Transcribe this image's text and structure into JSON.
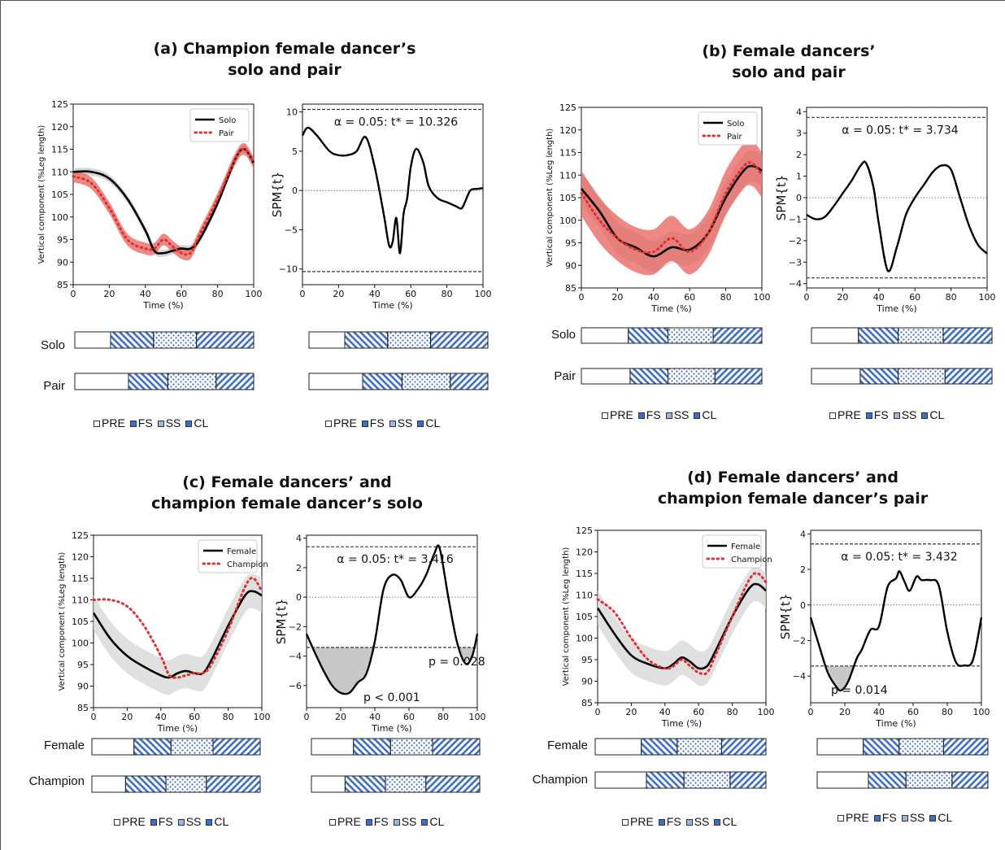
{
  "panels": [
    {
      "id": "a",
      "title": "(a) Champion female dancer’s\nsolo and pair",
      "phase_labels": [
        "Solo",
        "Pair"
      ],
      "phase_legend": [
        "PRE",
        "FS",
        "SS",
        "CL"
      ],
      "chart_data": [
        {
          "type": "line",
          "xlabel": "Time (%)",
          "ylabel": "Vertical component (%Leg length)",
          "xlim": [
            0,
            100
          ],
          "ylim": [
            85,
            125
          ],
          "xticks": [
            0,
            20,
            40,
            60,
            80,
            100
          ],
          "yticks": [
            85,
            90,
            95,
            100,
            105,
            110,
            115,
            120,
            125
          ],
          "legend_position": "top-right",
          "series": [
            {
              "name": "Solo",
              "style": "solid",
              "color": "#000000",
              "x": [
                0,
                10,
                20,
                30,
                40,
                45,
                50,
                55,
                60,
                65,
                70,
                80,
                90,
                95,
                100
              ],
              "y": [
                110,
                110,
                108.5,
                104,
                97,
                92.5,
                92,
                92.5,
                93,
                93,
                95,
                103,
                113,
                115,
                112
              ],
              "band": {
                "color": "#c8c8c8",
                "half_width": 0.8
              }
            },
            {
              "name": "Pair",
              "style": "dotted",
              "color": "#e03030",
              "x": [
                0,
                10,
                20,
                30,
                40,
                45,
                50,
                55,
                60,
                65,
                70,
                80,
                90,
                95,
                100
              ],
              "y": [
                109,
                107.5,
                102,
                95,
                93,
                93,
                95,
                93.5,
                92,
                92,
                96,
                104,
                113,
                115,
                112
              ],
              "band": {
                "color": "#e8605c",
                "half_width": 1.3
              }
            }
          ]
        },
        {
          "type": "line",
          "xlabel": "Time (%)",
          "ylabel": "SPM{t}",
          "xlim": [
            0,
            100
          ],
          "ylim": [
            -12,
            11
          ],
          "xticks": [
            0,
            20,
            40,
            60,
            80,
            100
          ],
          "yticks": [
            -10,
            -5,
            0,
            5,
            10
          ],
          "threshold": 10.326,
          "annotation": "α = 0.05:  t* = 10.326",
          "series": [
            {
              "name": "SPM{t}",
              "x": [
                0,
                3,
                8,
                15,
                20,
                25,
                30,
                35,
                40,
                45,
                48,
                50,
                52,
                54,
                56,
                58,
                60,
                63,
                67,
                70,
                75,
                80,
                85,
                88,
                90,
                93,
                97,
                100
              ],
              "y": [
                7,
                8,
                7,
                5,
                4.5,
                4.5,
                5,
                6.8,
                3,
                -3,
                -7,
                -6.5,
                -3.5,
                -8,
                -3,
                -1,
                3,
                5.3,
                3.5,
                0.5,
                -1,
                -1.5,
                -2,
                -2.3,
                -1.5,
                0,
                0.2,
                0.3
              ]
            }
          ]
        }
      ],
      "phase_bars": [
        [
          {
            "PRE": 20,
            "FS": 24,
            "SS": 24,
            "CL": 32
          },
          {
            "PRE": 20,
            "FS": 24,
            "SS": 24,
            "CL": 32
          }
        ],
        [
          {
            "PRE": 30,
            "FS": 22,
            "SS": 27,
            "CL": 21
          },
          {
            "PRE": 30,
            "FS": 22,
            "SS": 27,
            "CL": 21
          }
        ]
      ]
    },
    {
      "id": "b",
      "title": "(b) Female dancers’\nsolo and pair",
      "phase_labels": [
        "Solo",
        "Pair"
      ],
      "phase_legend": [
        "PRE",
        "FS",
        "SS",
        "CL"
      ],
      "chart_data": [
        {
          "type": "line",
          "xlabel": "Time (%)",
          "ylabel": "Vertical component (%Leg length)",
          "xlim": [
            0,
            100
          ],
          "ylim": [
            85,
            125
          ],
          "xticks": [
            0,
            20,
            40,
            60,
            80,
            100
          ],
          "yticks": [
            85,
            90,
            95,
            100,
            105,
            110,
            115,
            120,
            125
          ],
          "legend_position": "top-right",
          "series": [
            {
              "name": "Solo",
              "style": "solid",
              "color": "#000000",
              "x": [
                0,
                10,
                20,
                30,
                40,
                50,
                60,
                70,
                80,
                90,
                95,
                100
              ],
              "y": [
                107,
                102,
                96,
                94,
                92,
                94,
                93.5,
                97,
                105,
                111,
                112,
                111
              ],
              "band": {
                "color": "#cfcfcf",
                "half_width": 3.5
              }
            },
            {
              "name": "Pair",
              "style": "dotted",
              "color": "#e03030",
              "x": [
                0,
                10,
                20,
                30,
                40,
                50,
                60,
                70,
                80,
                90,
                95,
                100
              ],
              "y": [
                106,
                100,
                96,
                93.5,
                93,
                96,
                93,
                97,
                106,
                112,
                112.5,
                110
              ],
              "band": {
                "color": "#e8605c",
                "half_width": 5
              }
            }
          ]
        },
        {
          "type": "line",
          "xlabel": "Time (%)",
          "ylabel": "SPM{t}",
          "xlim": [
            0,
            100
          ],
          "ylim": [
            -4.2,
            4.2
          ],
          "xticks": [
            0,
            20,
            40,
            60,
            80,
            100
          ],
          "yticks": [
            -4,
            -3,
            -2,
            -1,
            0,
            1,
            2,
            3,
            4
          ],
          "threshold": 3.734,
          "annotation": "α = 0.05:  t* = 3.734",
          "series": [
            {
              "name": "SPM{t}",
              "x": [
                0,
                5,
                10,
                15,
                20,
                25,
                30,
                33,
                37,
                40,
                45,
                50,
                55,
                60,
                65,
                70,
                75,
                80,
                85,
                90,
                95,
                100
              ],
              "y": [
                -0.8,
                -1,
                -0.9,
                -0.4,
                0.2,
                0.8,
                1.5,
                1.6,
                0.5,
                -1.2,
                -3.4,
                -2.3,
                -0.8,
                0,
                0.6,
                1.2,
                1.5,
                1.3,
                0,
                -1.3,
                -2.2,
                -2.6
              ]
            }
          ]
        }
      ],
      "phase_bars": [
        [
          {
            "PRE": 26,
            "FS": 22,
            "SS": 25,
            "CL": 27
          },
          {
            "PRE": 26,
            "FS": 22,
            "SS": 25,
            "CL": 27
          }
        ],
        [
          {
            "PRE": 27,
            "FS": 21,
            "SS": 26,
            "CL": 26
          },
          {
            "PRE": 27,
            "FS": 21,
            "SS": 26,
            "CL": 26
          }
        ]
      ]
    },
    {
      "id": "c",
      "title": "(c) Female dancers’ and\nchampion female dancer’s solo",
      "phase_labels": [
        "Female",
        "Champion"
      ],
      "phase_legend": [
        "PRE",
        "FS",
        "SS",
        "CL"
      ],
      "chart_data": [
        {
          "type": "line",
          "xlabel": "Time (%)",
          "ylabel": "Vertical component (%Leg length)",
          "xlim": [
            0,
            100
          ],
          "ylim": [
            85,
            125
          ],
          "xticks": [
            0,
            20,
            40,
            60,
            80,
            100
          ],
          "yticks": [
            85,
            90,
            95,
            100,
            105,
            110,
            115,
            120,
            125
          ],
          "legend_position": "top-right",
          "series": [
            {
              "name": "Female",
              "style": "solid",
              "color": "#000000",
              "x": [
                0,
                10,
                20,
                30,
                40,
                45,
                50,
                55,
                60,
                65,
                70,
                80,
                90,
                95,
                100
              ],
              "y": [
                107,
                101,
                97,
                94.5,
                92.5,
                92,
                93,
                93.5,
                93,
                93,
                96,
                104,
                111,
                112,
                111
              ],
              "band": {
                "color": "#d6d6d6",
                "half_width": 4
              }
            },
            {
              "name": "Champion",
              "style": "dotted",
              "color": "#e03030",
              "x": [
                0,
                10,
                20,
                30,
                40,
                45,
                50,
                55,
                60,
                65,
                70,
                80,
                90,
                95,
                100
              ],
              "y": [
                110,
                110,
                108.5,
                104,
                97,
                92.5,
                92,
                92.5,
                93,
                93,
                95,
                103,
                113,
                115,
                112
              ]
            }
          ]
        },
        {
          "type": "line",
          "xlabel": "Time (%)",
          "ylabel": "SPM{t}",
          "xlim": [
            0,
            100
          ],
          "ylim": [
            -7.5,
            4.2
          ],
          "xticks": [
            0,
            20,
            40,
            60,
            80,
            100
          ],
          "yticks": [
            -6,
            -4,
            -2,
            0,
            2,
            4
          ],
          "threshold": 3.416,
          "annotation": "α = 0.05:  t* = 3.416",
          "labels": [
            "p < 0.001",
            "p = 0.028"
          ],
          "series": [
            {
              "name": "SPM{t}",
              "x": [
                0,
                5,
                10,
                15,
                20,
                25,
                30,
                35,
                40,
                45,
                50,
                55,
                60,
                65,
                70,
                75,
                78,
                83,
                88,
                93,
                97,
                100
              ],
              "y": [
                -2.5,
                -3.8,
                -5,
                -6,
                -6.5,
                -6.5,
                -5.8,
                -5.2,
                -3,
                0.5,
                1.5,
                1.2,
                0,
                0.5,
                1.5,
                3,
                3.3,
                0,
                -3,
                -4.5,
                -4,
                -2.5
              ]
            }
          ]
        }
      ],
      "phase_bars": [
        [
          {
            "PRE": 25,
            "FS": 22,
            "SS": 25,
            "CL": 28
          },
          {
            "PRE": 25,
            "FS": 22,
            "SS": 25,
            "CL": 28
          }
        ],
        [
          {
            "PRE": 20,
            "FS": 24,
            "SS": 24,
            "CL": 32
          },
          {
            "PRE": 20,
            "FS": 24,
            "SS": 24,
            "CL": 32
          }
        ]
      ]
    },
    {
      "id": "d",
      "title": "(d) Female dancers’ and\nchampion female dancer’s pair",
      "phase_labels": [
        "Female",
        "Champion"
      ],
      "phase_legend": [
        "PRE",
        "FS",
        "SS",
        "CL"
      ],
      "chart_data": [
        {
          "type": "line",
          "xlabel": "Time (%)",
          "ylabel": "Vertical component (%Leg length)",
          "xlim": [
            0,
            100
          ],
          "ylim": [
            85,
            125
          ],
          "xticks": [
            0,
            20,
            40,
            60,
            80,
            100
          ],
          "yticks": [
            85,
            90,
            95,
            100,
            105,
            110,
            115,
            120,
            125
          ],
          "legend_position": "top-right",
          "series": [
            {
              "name": "Female",
              "style": "solid",
              "color": "#000000",
              "x": [
                0,
                10,
                20,
                30,
                40,
                45,
                50,
                55,
                60,
                65,
                70,
                80,
                90,
                95,
                100
              ],
              "y": [
                107,
                101,
                96,
                94,
                93,
                94,
                95.5,
                94.5,
                93,
                93.5,
                97,
                105,
                111.5,
                112.5,
                111
              ],
              "band": {
                "color": "#d6d6d6",
                "half_width": 4
              }
            },
            {
              "name": "Champion",
              "style": "dotted",
              "color": "#e03030",
              "x": [
                0,
                10,
                20,
                30,
                40,
                45,
                50,
                55,
                60,
                65,
                70,
                80,
                90,
                95,
                100
              ],
              "y": [
                109,
                106,
                100,
                95,
                93,
                93.5,
                95,
                93.5,
                92,
                92,
                96,
                105,
                113.5,
                115,
                113
              ]
            }
          ]
        },
        {
          "type": "line",
          "xlabel": "Time (%)",
          "ylabel": "SPM{t}",
          "xlim": [
            0,
            100
          ],
          "ylim": [
            -5.5,
            4.2
          ],
          "xticks": [
            0,
            20,
            40,
            60,
            80,
            100
          ],
          "yticks": [
            -4,
            -2,
            0,
            2,
            4
          ],
          "threshold": 3.432,
          "annotation": "α = 0.05:  t* = 3.432",
          "labels": [
            "p = 0.014"
          ],
          "series": [
            {
              "name": "SPM{t}",
              "x": [
                0,
                5,
                10,
                15,
                18,
                22,
                27,
                30,
                35,
                40,
                45,
                50,
                52,
                55,
                58,
                62,
                65,
                70,
                75,
                80,
                85,
                90,
                95,
                100
              ],
              "y": [
                -0.7,
                -2.3,
                -3.8,
                -4.6,
                -4.8,
                -4.3,
                -3,
                -2.5,
                -1.4,
                -1.2,
                1,
                1.5,
                1.9,
                1.3,
                0.8,
                1.6,
                1.4,
                1.4,
                1.1,
                -1.5,
                -3.2,
                -3.4,
                -3.1,
                -0.7
              ]
            }
          ]
        }
      ],
      "phase_bars": [
        [
          {
            "PRE": 27,
            "FS": 21,
            "SS": 26,
            "CL": 26
          },
          {
            "PRE": 27,
            "FS": 21,
            "SS": 26,
            "CL": 26
          }
        ],
        [
          {
            "PRE": 30,
            "FS": 22,
            "SS": 27,
            "CL": 21
          },
          {
            "PRE": 30,
            "FS": 22,
            "SS": 27,
            "CL": 21
          }
        ]
      ]
    }
  ],
  "colors": {
    "phase_blue": "#3d6fc4",
    "axis": "#111111"
  }
}
